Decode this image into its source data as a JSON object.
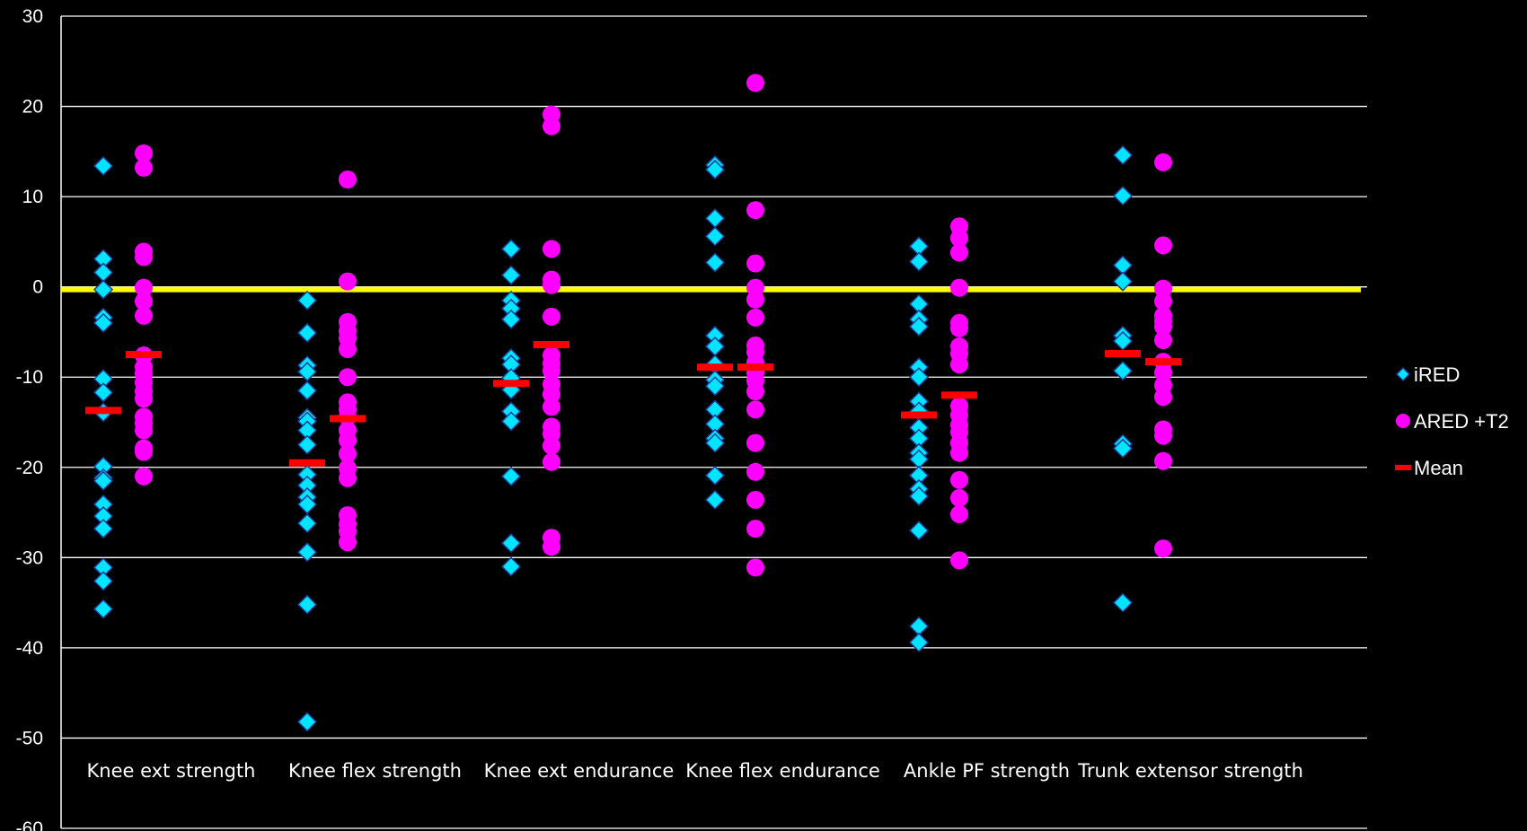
{
  "chart_data": {
    "type": "scatter",
    "title": "",
    "xlabel": "",
    "ylabel": "",
    "ylim": [
      -60,
      30
    ],
    "yticks": [
      30,
      20,
      10,
      0,
      -10,
      -20,
      -30,
      -40,
      -50,
      -60
    ],
    "grid": true,
    "legend_position": "right",
    "reference_line": {
      "y": -0.3,
      "color": "#ffff00"
    },
    "colors": {
      "background": "#000000",
      "iRED": "#00e5ff",
      "ARED": "#ff00ff",
      "mean": "#ff0000",
      "grid": "#ffffff",
      "text": "#ffffff"
    },
    "categories": [
      "Knee ext strength",
      "Knee flex strength",
      "Knee ext endurance",
      "Knee flex endurance",
      "Ankle PF strength",
      "Trunk extensor strength"
    ],
    "series": [
      {
        "name": "iRED",
        "marker": "diamond",
        "values": [
          [
            13.4,
            3.1,
            1.6,
            -0.3,
            -3.4,
            -4.0,
            -10.2,
            -11.7,
            -13.9,
            -19.9,
            -21.2,
            -21.5,
            -24.1,
            -25.4,
            -26.8,
            -31.1,
            -32.6,
            -35.7
          ],
          [
            -1.5,
            -5.1,
            -8.7,
            -9.4,
            -11.5,
            -14.5,
            -14.9,
            -15.9,
            -17.5,
            -20.8,
            -22.0,
            -23.3,
            -24.1,
            -26.2,
            -29.4,
            -35.2,
            -48.2
          ],
          [
            4.2,
            1.3,
            -1.5,
            -2.4,
            -3.6,
            -7.9,
            -8.6,
            -10.1,
            -11.4,
            -13.8,
            -14.9,
            -21.0,
            -28.4,
            -31.0
          ],
          [
            13.5,
            13.0,
            7.6,
            5.6,
            2.7,
            -5.4,
            -6.6,
            -8.6,
            -10.3,
            -11.0,
            -13.6,
            -15.2,
            -16.8,
            -17.3,
            -20.9,
            -23.6
          ],
          [
            4.5,
            2.8,
            -1.9,
            -3.6,
            -4.4,
            -8.9,
            -10.0,
            -12.7,
            -13.8,
            -15.6,
            -16.8,
            -18.4,
            -19.1,
            -20.9,
            -22.4,
            -23.2,
            -27.0,
            -37.6,
            -39.4
          ],
          [
            14.6,
            10.1,
            2.4,
            0.6,
            -5.4,
            -6.0,
            -9.3,
            -17.4,
            -17.9,
            -35.0
          ]
        ]
      },
      {
        "name": "ARED +T2",
        "marker": "circle",
        "values": [
          [
            14.8,
            13.2,
            3.9,
            3.3,
            -0.1,
            -1.6,
            -3.2,
            -7.6,
            -8.9,
            -9.6,
            -10.6,
            -11.6,
            -12.4,
            -14.4,
            -15.1,
            -15.9,
            -17.9,
            -18.3,
            -21.0
          ],
          [
            11.9,
            0.6,
            -3.9,
            -4.9,
            -5.7,
            -6.9,
            -10.0,
            -12.8,
            -13.6,
            -14.4,
            -15.9,
            -17.0,
            -18.5,
            -20.1,
            -21.2,
            -25.3,
            -26.3,
            -27.1,
            -28.3
          ],
          [
            19.1,
            17.8,
            4.2,
            0.8,
            0.2,
            -3.3,
            -7.6,
            -8.5,
            -9.3,
            -10.8,
            -11.9,
            -13.3,
            -15.5,
            -16.3,
            -17.6,
            -19.4,
            -27.8,
            -28.8
          ],
          [
            22.6,
            8.5,
            2.6,
            -0.1,
            -1.4,
            -3.4,
            -6.5,
            -7.2,
            -8.4,
            -9.5,
            -10.4,
            -11.6,
            -13.6,
            -17.3,
            -20.5,
            -23.6,
            -26.8,
            -31.1
          ],
          [
            6.7,
            5.4,
            3.8,
            -0.1,
            -4.0,
            -4.6,
            -6.6,
            -7.4,
            -8.6,
            -13.2,
            -14.2,
            -15.3,
            -16.1,
            -17.3,
            -18.4,
            -21.4,
            -23.4,
            -25.2,
            -30.3
          ],
          [
            13.8,
            4.6,
            -0.2,
            -1.6,
            -3.2,
            -3.8,
            -4.4,
            -5.9,
            -8.3,
            -9.5,
            -10.9,
            -12.2,
            -15.8,
            -16.5,
            -19.3,
            -29.0
          ]
        ]
      },
      {
        "name": "Mean",
        "marker": "dash",
        "values": [
          [
            -13.7,
            -7.5
          ],
          [
            -19.5,
            -14.6
          ],
          [
            -10.7,
            -6.4
          ],
          [
            -8.9,
            -8.9
          ],
          [
            -14.2,
            -12.0
          ],
          [
            -7.4,
            -8.3
          ]
        ]
      }
    ]
  }
}
